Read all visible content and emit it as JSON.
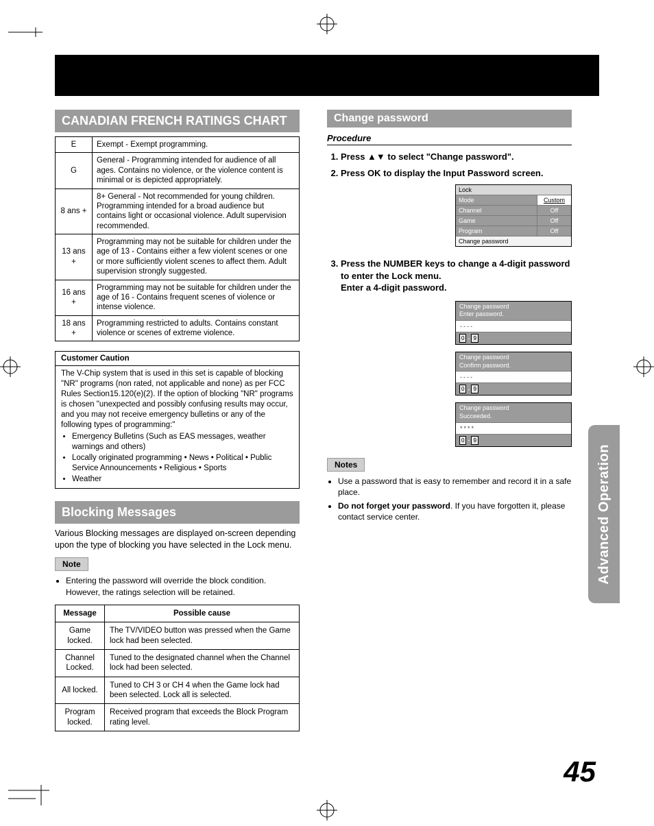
{
  "colors": {
    "band_bg": "#000000",
    "heading_bg": "#9b9b9b",
    "heading_fg": "#ffffff",
    "note_pill_bg": "#cfcfcf",
    "side_tab_bg": "#9b9b9b",
    "border": "#000000",
    "osd_title_bg": "#d9d9d9",
    "osd_row_bg": "#9b9b9b"
  },
  "typography": {
    "body_pt": 12.5,
    "table_pt": 11.5,
    "heading_pt": 18,
    "page_num_pt": 42
  },
  "page_number": "45",
  "side_tab": "Advanced Operation",
  "left": {
    "heading1": "CANADIAN FRENCH RATINGS CHART",
    "ratings": [
      {
        "label": "E",
        "desc": "Exempt - Exempt programming."
      },
      {
        "label": "G",
        "desc": "General - Programming intended for audience of all ages. Contains no violence, or the violence content is minimal or is depicted appropriately."
      },
      {
        "label": "8 ans +",
        "desc": "8+ General - Not recommended for young children. Programming intended for a broad audience but contains light or occasional violence. Adult supervision recommended."
      },
      {
        "label": "13 ans +",
        "desc": "Programming may not be suitable for children under the age of 13 - Contains either a few violent scenes or one or more sufficiently violent scenes to affect them. Adult supervision strongly suggested."
      },
      {
        "label": "16 ans +",
        "desc": "Programming may not be suitable for children under the age of 16 - Contains frequent scenes of violence or intense violence."
      },
      {
        "label": "18 ans +",
        "desc": "Programming restricted to adults. Contains constant violence or scenes of extreme violence."
      }
    ],
    "caution": {
      "title": "Customer Caution",
      "body": "The V-Chip system that is used in this set is capable of blocking \"NR\" programs (non rated, not applicable and none) as per FCC Rules Section15.120(e)(2). If the option of blocking \"NR\" programs is chosen \"unexpected and possibly confusing results may occur, and you may not receive emergency bulletins or any of the following types of programming:\"",
      "bullets": [
        "Emergency Bulletins (Such as EAS messages, weather warnings and others)",
        "Locally originated programming • News • Political • Public Service Announcements • Religious • Sports",
        "Weather"
      ]
    },
    "heading2": "Blocking Messages",
    "blocking_intro": "Various Blocking messages are displayed on-screen depending upon the type of blocking you have selected in the Lock menu.",
    "note_pill": "Note",
    "blocking_note": "Entering the password will override the block condition. However, the ratings selection will be retained.",
    "messages_headers": {
      "msg": "Message",
      "cause": "Possible cause"
    },
    "messages": [
      {
        "msg": "Game locked.",
        "cause": "The TV/VIDEO button was pressed when the Game lock had been selected."
      },
      {
        "msg": "Channel Locked.",
        "cause": "Tuned to the designated channel when the Channel lock had been selected."
      },
      {
        "msg": "All locked.",
        "cause": "Tuned to CH 3 or CH 4 when the Game lock had been selected. Lock all is selected."
      },
      {
        "msg": "Program locked.",
        "cause": "Received program that exceeds the Block Program rating level."
      }
    ]
  },
  "right": {
    "heading": "Change password",
    "procedure_label": "Procedure",
    "steps": [
      "Press ▲▼ to select \"Change password\".",
      "Press OK to display the Input Password screen."
    ],
    "osd_lock": {
      "title": "Lock",
      "rows": [
        {
          "k": "Mode",
          "v": "Custom",
          "highlight": true
        },
        {
          "k": "Channel",
          "v": "Off"
        },
        {
          "k": "Game",
          "v": "Off"
        },
        {
          "k": "Program",
          "v": "Off"
        }
      ],
      "last_row": "Change password"
    },
    "step3a": "Press the NUMBER keys to change a 4-digit password to enter the Lock menu.",
    "step3b": "Enter a 4-digit password.",
    "osd_cp": [
      {
        "title": "Change password",
        "sub": "Enter password.",
        "field": "----",
        "keys": [
          "0",
          "-",
          "9"
        ]
      },
      {
        "title": "Change password",
        "sub": "Confirm password.",
        "field": "----",
        "keys": [
          "0",
          "-",
          "9"
        ]
      },
      {
        "title": "Change password",
        "sub": "Succeeded.",
        "field": "****",
        "keys": [
          "0",
          "-",
          "9"
        ]
      }
    ],
    "notes_pill": "Notes",
    "notes": [
      {
        "pre": "",
        "bold": "",
        "text": "Use a password that is easy to remember and record it in a safe place."
      },
      {
        "pre": "",
        "bold": "Do not forget your password",
        "text": ". If you have forgotten it, please contact service center."
      }
    ]
  }
}
